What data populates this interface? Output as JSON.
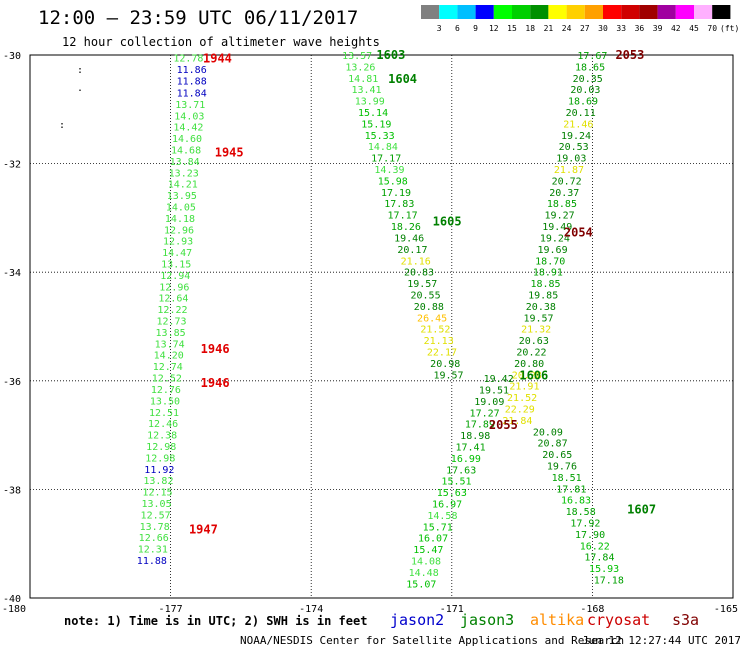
{
  "header": {
    "title": "12:00 – 23:59 UTC 06/11/2017",
    "subtitle": "12 hour collection of altimeter wave heights"
  },
  "color_scale": {
    "labels": [
      "3",
      "6",
      "9",
      "12",
      "15",
      "18",
      "21",
      "24",
      "27",
      "30",
      "33",
      "36",
      "39",
      "42",
      "45",
      "70"
    ],
    "unit": "(ft)",
    "colors": [
      "#808080",
      "#00ffff",
      "#00bfff",
      "#0000ff",
      "#00ff00",
      "#00d000",
      "#009000",
      "#ffff00",
      "#ffd000",
      "#ffa000",
      "#ff0000",
      "#d00000",
      "#a00000",
      "#a000a0",
      "#ff00ff",
      "#ffb0ff",
      "#000000"
    ]
  },
  "footer": {
    "note": "note: 1) Time is in UTC; 2) SWH is in feet",
    "credit": "NOAA/NESDIS Center for Satellite Applications and Research",
    "timestamp": "Jun 12 12:27:44 UTC 2017",
    "satellites": [
      {
        "name": "jason2",
        "color": "#0000cc"
      },
      {
        "name": "jason3",
        "color": "#008000"
      },
      {
        "name": "altika",
        "color": "#ff8c00"
      },
      {
        "name": "cryosat",
        "color": "#cc0000"
      },
      {
        "name": "s3a",
        "color": "#800000"
      }
    ]
  },
  "chart_data": {
    "type": "scatter",
    "xlim": [
      -180,
      -165
    ],
    "ylim": [
      -40,
      -30
    ],
    "x_ticks": [
      "-180",
      "-177",
      "-174",
      "-171",
      "-168",
      "-165"
    ],
    "y_ticks": [
      "-30",
      "-32",
      "-34",
      "-36",
      "-38",
      "-40"
    ],
    "grid": true,
    "points": [
      {
        "x": -176.62,
        "y": -30.05,
        "v": "12.78",
        "c": "#40e040"
      },
      {
        "x": -176.55,
        "y": -30.26,
        "v": "11.86",
        "c": "#0000c0"
      },
      {
        "x": -176.55,
        "y": -30.47,
        "v": "11.88",
        "c": "#0000c0"
      },
      {
        "x": -176.55,
        "y": -30.69,
        "v": "11.84",
        "c": "#0000c0"
      },
      {
        "x": -176.58,
        "y": -30.9,
        "v": "13.71",
        "c": "#40e040"
      },
      {
        "x": -176.6,
        "y": -31.11,
        "v": "14.03",
        "c": "#40e040"
      },
      {
        "x": -176.62,
        "y": -31.32,
        "v": "14.42",
        "c": "#40e040"
      },
      {
        "x": -176.65,
        "y": -31.53,
        "v": "14.60",
        "c": "#40e040"
      },
      {
        "x": -176.67,
        "y": -31.74,
        "v": "14.68",
        "c": "#40e040"
      },
      {
        "x": -176.7,
        "y": -31.95,
        "v": "13.84",
        "c": "#40e040"
      },
      {
        "x": -176.72,
        "y": -32.16,
        "v": "13.23",
        "c": "#40e040"
      },
      {
        "x": -176.74,
        "y": -32.37,
        "v": "14.21",
        "c": "#40e040"
      },
      {
        "x": -176.76,
        "y": -32.58,
        "v": "13.95",
        "c": "#40e040"
      },
      {
        "x": -176.78,
        "y": -32.79,
        "v": "14.05",
        "c": "#40e040"
      },
      {
        "x": -176.8,
        "y": -33.0,
        "v": "14.18",
        "c": "#40e040"
      },
      {
        "x": -176.82,
        "y": -33.21,
        "v": "12.96",
        "c": "#40e040"
      },
      {
        "x": -176.84,
        "y": -33.42,
        "v": "12.93",
        "c": "#40e040"
      },
      {
        "x": -176.86,
        "y": -33.63,
        "v": "14.47",
        "c": "#40e040"
      },
      {
        "x": -176.88,
        "y": -33.84,
        "v": "13.15",
        "c": "#40e040"
      },
      {
        "x": -176.9,
        "y": -34.05,
        "v": "12.94",
        "c": "#40e040"
      },
      {
        "x": -176.92,
        "y": -34.26,
        "v": "12.96",
        "c": "#40e040"
      },
      {
        "x": -176.94,
        "y": -34.47,
        "v": "12.64",
        "c": "#40e040"
      },
      {
        "x": -176.96,
        "y": -34.68,
        "v": "12.22",
        "c": "#40e040"
      },
      {
        "x": -176.98,
        "y": -34.89,
        "v": "12.73",
        "c": "#40e040"
      },
      {
        "x": -177.0,
        "y": -35.1,
        "v": "13.85",
        "c": "#40e040"
      },
      {
        "x": -177.02,
        "y": -35.31,
        "v": "13.74",
        "c": "#40e040"
      },
      {
        "x": -177.04,
        "y": -35.52,
        "v": "14.20",
        "c": "#40e040"
      },
      {
        "x": -177.06,
        "y": -35.73,
        "v": "12.74",
        "c": "#40e040"
      },
      {
        "x": -177.08,
        "y": -35.94,
        "v": "12.52",
        "c": "#40e040"
      },
      {
        "x": -177.1,
        "y": -36.15,
        "v": "12.76",
        "c": "#40e040"
      },
      {
        "x": -177.12,
        "y": -36.36,
        "v": "13.50",
        "c": "#40e040"
      },
      {
        "x": -177.14,
        "y": -36.57,
        "v": "12.51",
        "c": "#40e040"
      },
      {
        "x": -177.16,
        "y": -36.78,
        "v": "12.46",
        "c": "#40e040"
      },
      {
        "x": -177.18,
        "y": -36.99,
        "v": "12.38",
        "c": "#40e040"
      },
      {
        "x": -177.2,
        "y": -37.2,
        "v": "12.98",
        "c": "#40e040"
      },
      {
        "x": -177.22,
        "y": -37.41,
        "v": "12.98",
        "c": "#40e040"
      },
      {
        "x": -177.24,
        "y": -37.62,
        "v": "11.92",
        "c": "#0000c0"
      },
      {
        "x": -177.26,
        "y": -37.83,
        "v": "13.82",
        "c": "#40e040"
      },
      {
        "x": -177.28,
        "y": -38.04,
        "v": "12.15",
        "c": "#40e040"
      },
      {
        "x": -177.3,
        "y": -38.25,
        "v": "13.05",
        "c": "#40e040"
      },
      {
        "x": -177.32,
        "y": -38.46,
        "v": "12.57",
        "c": "#40e040"
      },
      {
        "x": -177.34,
        "y": -38.67,
        "v": "13.78",
        "c": "#40e040"
      },
      {
        "x": -177.36,
        "y": -38.88,
        "v": "12.66",
        "c": "#40e040"
      },
      {
        "x": -177.38,
        "y": -39.09,
        "v": "12.31",
        "c": "#40e040"
      },
      {
        "x": -177.4,
        "y": -39.3,
        "v": "11.88",
        "c": "#0000c0"
      },
      {
        "x": -173.02,
        "y": -30.0,
        "v": "13.57",
        "c": "#40e040"
      },
      {
        "x": -172.95,
        "y": -30.21,
        "v": "13.26",
        "c": "#40e040"
      },
      {
        "x": -172.89,
        "y": -30.42,
        "v": "14.81",
        "c": "#40e040"
      },
      {
        "x": -172.82,
        "y": -30.63,
        "v": "13.41",
        "c": "#40e040"
      },
      {
        "x": -172.75,
        "y": -30.84,
        "v": "13.99",
        "c": "#40e040"
      },
      {
        "x": -172.68,
        "y": -31.05,
        "v": "15.14",
        "c": "#00c000"
      },
      {
        "x": -172.61,
        "y": -31.26,
        "v": "15.19",
        "c": "#00c000"
      },
      {
        "x": -172.54,
        "y": -31.47,
        "v": "15.33",
        "c": "#00c000"
      },
      {
        "x": -172.47,
        "y": -31.68,
        "v": "14.84",
        "c": "#40e040"
      },
      {
        "x": -172.4,
        "y": -31.89,
        "v": "17.17",
        "c": "#00a000"
      },
      {
        "x": -172.33,
        "y": -32.1,
        "v": "14.39",
        "c": "#40e040"
      },
      {
        "x": -172.26,
        "y": -32.31,
        "v": "15.98",
        "c": "#00c000"
      },
      {
        "x": -172.19,
        "y": -32.52,
        "v": "17.19",
        "c": "#00a000"
      },
      {
        "x": -172.12,
        "y": -32.73,
        "v": "17.83",
        "c": "#00a000"
      },
      {
        "x": -172.05,
        "y": -32.94,
        "v": "17.17",
        "c": "#00a000"
      },
      {
        "x": -171.98,
        "y": -33.15,
        "v": "18.26",
        "c": "#00a000"
      },
      {
        "x": -171.91,
        "y": -33.36,
        "v": "19.46",
        "c": "#008000"
      },
      {
        "x": -171.84,
        "y": -33.57,
        "v": "20.17",
        "c": "#008000"
      },
      {
        "x": -171.77,
        "y": -33.78,
        "v": "21.16",
        "c": "#e0e000"
      },
      {
        "x": -171.7,
        "y": -33.99,
        "v": "20.83",
        "c": "#008000"
      },
      {
        "x": -171.63,
        "y": -34.2,
        "v": "19.57",
        "c": "#008000"
      },
      {
        "x": -171.56,
        "y": -34.41,
        "v": "20.55",
        "c": "#008000"
      },
      {
        "x": -171.49,
        "y": -34.62,
        "v": "20.88",
        "c": "#008000"
      },
      {
        "x": -171.42,
        "y": -34.83,
        "v": "26.45",
        "c": "#ffc000"
      },
      {
        "x": -171.35,
        "y": -35.04,
        "v": "21.52",
        "c": "#e0e000"
      },
      {
        "x": -171.28,
        "y": -35.25,
        "v": "21.13",
        "c": "#e0e000"
      },
      {
        "x": -171.21,
        "y": -35.46,
        "v": "22.17",
        "c": "#e0e000"
      },
      {
        "x": -171.14,
        "y": -35.67,
        "v": "20.98",
        "c": "#008000"
      },
      {
        "x": -171.07,
        "y": -35.88,
        "v": "19.57",
        "c": "#008000"
      },
      {
        "x": -170.0,
        "y": -35.95,
        "v": "19.42",
        "c": "#008000"
      },
      {
        "x": -170.1,
        "y": -36.16,
        "v": "19.51",
        "c": "#008000"
      },
      {
        "x": -170.2,
        "y": -36.37,
        "v": "19.09",
        "c": "#008000"
      },
      {
        "x": -170.3,
        "y": -36.58,
        "v": "17.27",
        "c": "#00a000"
      },
      {
        "x": -170.4,
        "y": -36.79,
        "v": "17.89",
        "c": "#00a000"
      },
      {
        "x": -170.5,
        "y": -37.0,
        "v": "18.98",
        "c": "#008000"
      },
      {
        "x": -170.6,
        "y": -37.21,
        "v": "17.41",
        "c": "#00a000"
      },
      {
        "x": -170.7,
        "y": -37.42,
        "v": "16.99",
        "c": "#00c000"
      },
      {
        "x": -170.8,
        "y": -37.63,
        "v": "17.63",
        "c": "#00a000"
      },
      {
        "x": -170.9,
        "y": -37.84,
        "v": "15.51",
        "c": "#00c000"
      },
      {
        "x": -171.0,
        "y": -38.05,
        "v": "15.63",
        "c": "#00c000"
      },
      {
        "x": -171.1,
        "y": -38.26,
        "v": "16.97",
        "c": "#00c000"
      },
      {
        "x": -171.2,
        "y": -38.47,
        "v": "14.58",
        "c": "#40e040"
      },
      {
        "x": -171.3,
        "y": -38.68,
        "v": "15.71",
        "c": "#00c000"
      },
      {
        "x": -171.4,
        "y": -38.89,
        "v": "16.07",
        "c": "#00c000"
      },
      {
        "x": -171.5,
        "y": -39.1,
        "v": "15.47",
        "c": "#00c000"
      },
      {
        "x": -171.55,
        "y": -39.31,
        "v": "14.08",
        "c": "#40e040"
      },
      {
        "x": -171.6,
        "y": -39.52,
        "v": "14.48",
        "c": "#40e040"
      },
      {
        "x": -171.65,
        "y": -39.73,
        "v": "15.07",
        "c": "#00c000"
      },
      {
        "x": -168.0,
        "y": -30.0,
        "v": "17.67",
        "c": "#00a000"
      },
      {
        "x": -168.05,
        "y": -30.21,
        "v": "18.65",
        "c": "#00a000"
      },
      {
        "x": -168.1,
        "y": -30.42,
        "v": "20.35",
        "c": "#008000"
      },
      {
        "x": -168.15,
        "y": -30.63,
        "v": "20.03",
        "c": "#008000"
      },
      {
        "x": -168.2,
        "y": -30.84,
        "v": "18.69",
        "c": "#00a000"
      },
      {
        "x": -168.25,
        "y": -31.05,
        "v": "20.11",
        "c": "#008000"
      },
      {
        "x": -168.3,
        "y": -31.26,
        "v": "21.46",
        "c": "#e0e000"
      },
      {
        "x": -168.35,
        "y": -31.47,
        "v": "19.24",
        "c": "#008000"
      },
      {
        "x": -168.4,
        "y": -31.68,
        "v": "20.53",
        "c": "#008000"
      },
      {
        "x": -168.45,
        "y": -31.89,
        "v": "19.03",
        "c": "#008000"
      },
      {
        "x": -168.5,
        "y": -32.1,
        "v": "21.87",
        "c": "#e0e000"
      },
      {
        "x": -168.55,
        "y": -32.31,
        "v": "20.72",
        "c": "#008000"
      },
      {
        "x": -168.6,
        "y": -32.52,
        "v": "20.37",
        "c": "#008000"
      },
      {
        "x": -168.65,
        "y": -32.73,
        "v": "18.85",
        "c": "#00a000"
      },
      {
        "x": -168.7,
        "y": -32.94,
        "v": "19.27",
        "c": "#008000"
      },
      {
        "x": -168.75,
        "y": -33.15,
        "v": "19.49",
        "c": "#008000"
      },
      {
        "x": -168.8,
        "y": -33.36,
        "v": "19.24",
        "c": "#008000"
      },
      {
        "x": -168.85,
        "y": -33.57,
        "v": "19.69",
        "c": "#008000"
      },
      {
        "x": -168.9,
        "y": -33.78,
        "v": "18.70",
        "c": "#00a000"
      },
      {
        "x": -168.95,
        "y": -33.99,
        "v": "18.91",
        "c": "#00a000"
      },
      {
        "x": -169.0,
        "y": -34.2,
        "v": "18.85",
        "c": "#00a000"
      },
      {
        "x": -169.05,
        "y": -34.41,
        "v": "19.85",
        "c": "#008000"
      },
      {
        "x": -169.1,
        "y": -34.62,
        "v": "20.38",
        "c": "#008000"
      },
      {
        "x": -169.15,
        "y": -34.83,
        "v": "19.57",
        "c": "#008000"
      },
      {
        "x": -169.2,
        "y": -35.04,
        "v": "21.32",
        "c": "#e0e000"
      },
      {
        "x": -169.25,
        "y": -35.25,
        "v": "20.63",
        "c": "#008000"
      },
      {
        "x": -169.3,
        "y": -35.46,
        "v": "20.22",
        "c": "#008000"
      },
      {
        "x": -169.35,
        "y": -35.67,
        "v": "20.80",
        "c": "#008000"
      },
      {
        "x": -169.4,
        "y": -35.88,
        "v": "20.28",
        "c": "#e0e000"
      },
      {
        "x": -169.45,
        "y": -36.09,
        "v": "21.91",
        "c": "#e0e000"
      },
      {
        "x": -169.5,
        "y": -36.3,
        "v": "21.52",
        "c": "#e0e000"
      },
      {
        "x": -169.55,
        "y": -36.51,
        "v": "22.29",
        "c": "#e0e000"
      },
      {
        "x": -169.6,
        "y": -36.72,
        "v": "21.84",
        "c": "#e0e000"
      },
      {
        "x": -168.95,
        "y": -36.93,
        "v": "20.09",
        "c": "#008000"
      },
      {
        "x": -168.85,
        "y": -37.14,
        "v": "20.87",
        "c": "#008000"
      },
      {
        "x": -168.75,
        "y": -37.35,
        "v": "20.65",
        "c": "#008000"
      },
      {
        "x": -168.65,
        "y": -37.56,
        "v": "19.76",
        "c": "#008000"
      },
      {
        "x": -168.55,
        "y": -37.77,
        "v": "18.51",
        "c": "#00a000"
      },
      {
        "x": -168.45,
        "y": -37.98,
        "v": "17.81",
        "c": "#00a000"
      },
      {
        "x": -168.35,
        "y": -38.19,
        "v": "16.83",
        "c": "#00c000"
      },
      {
        "x": -168.25,
        "y": -38.4,
        "v": "18.58",
        "c": "#00a000"
      },
      {
        "x": -168.15,
        "y": -38.61,
        "v": "17.92",
        "c": "#00a000"
      },
      {
        "x": -168.05,
        "y": -38.82,
        "v": "17.90",
        "c": "#00a000"
      },
      {
        "x": -167.95,
        "y": -39.03,
        "v": "16.22",
        "c": "#00c000"
      },
      {
        "x": -167.85,
        "y": -39.24,
        "v": "17.84",
        "c": "#00a000"
      },
      {
        "x": -167.75,
        "y": -39.45,
        "v": "15.93",
        "c": "#00c000"
      },
      {
        "x": -167.65,
        "y": -39.66,
        "v": "17.18",
        "c": "#00a000"
      }
    ],
    "pass_labels": [
      {
        "x": -176.0,
        "y": -30.05,
        "text": "1944",
        "c": "#e00000"
      },
      {
        "x": -175.75,
        "y": -31.78,
        "text": "1945",
        "c": "#e00000"
      },
      {
        "x": -176.05,
        "y": -35.4,
        "text": "1946",
        "c": "#e00000"
      },
      {
        "x": -176.05,
        "y": -36.02,
        "text": "1946",
        "c": "#e00000"
      },
      {
        "x": -176.3,
        "y": -38.72,
        "text": "1947",
        "c": "#e00000"
      },
      {
        "x": -172.3,
        "y": -29.98,
        "text": "1603",
        "c": "#008000"
      },
      {
        "x": -172.05,
        "y": -30.42,
        "text": "1604",
        "c": "#008000"
      },
      {
        "x": -171.1,
        "y": -33.05,
        "text": "1605",
        "c": "#008000"
      },
      {
        "x": -169.25,
        "y": -35.88,
        "text": "1606",
        "c": "#008000"
      },
      {
        "x": -166.95,
        "y": -38.35,
        "text": "1607",
        "c": "#008000"
      },
      {
        "x": -167.2,
        "y": -29.98,
        "text": "2053",
        "c": "#800000"
      },
      {
        "x": -168.3,
        "y": -33.25,
        "text": "2054",
        "c": "#800000"
      },
      {
        "x": -169.9,
        "y": -36.8,
        "text": "2055",
        "c": "#800000"
      }
    ]
  }
}
